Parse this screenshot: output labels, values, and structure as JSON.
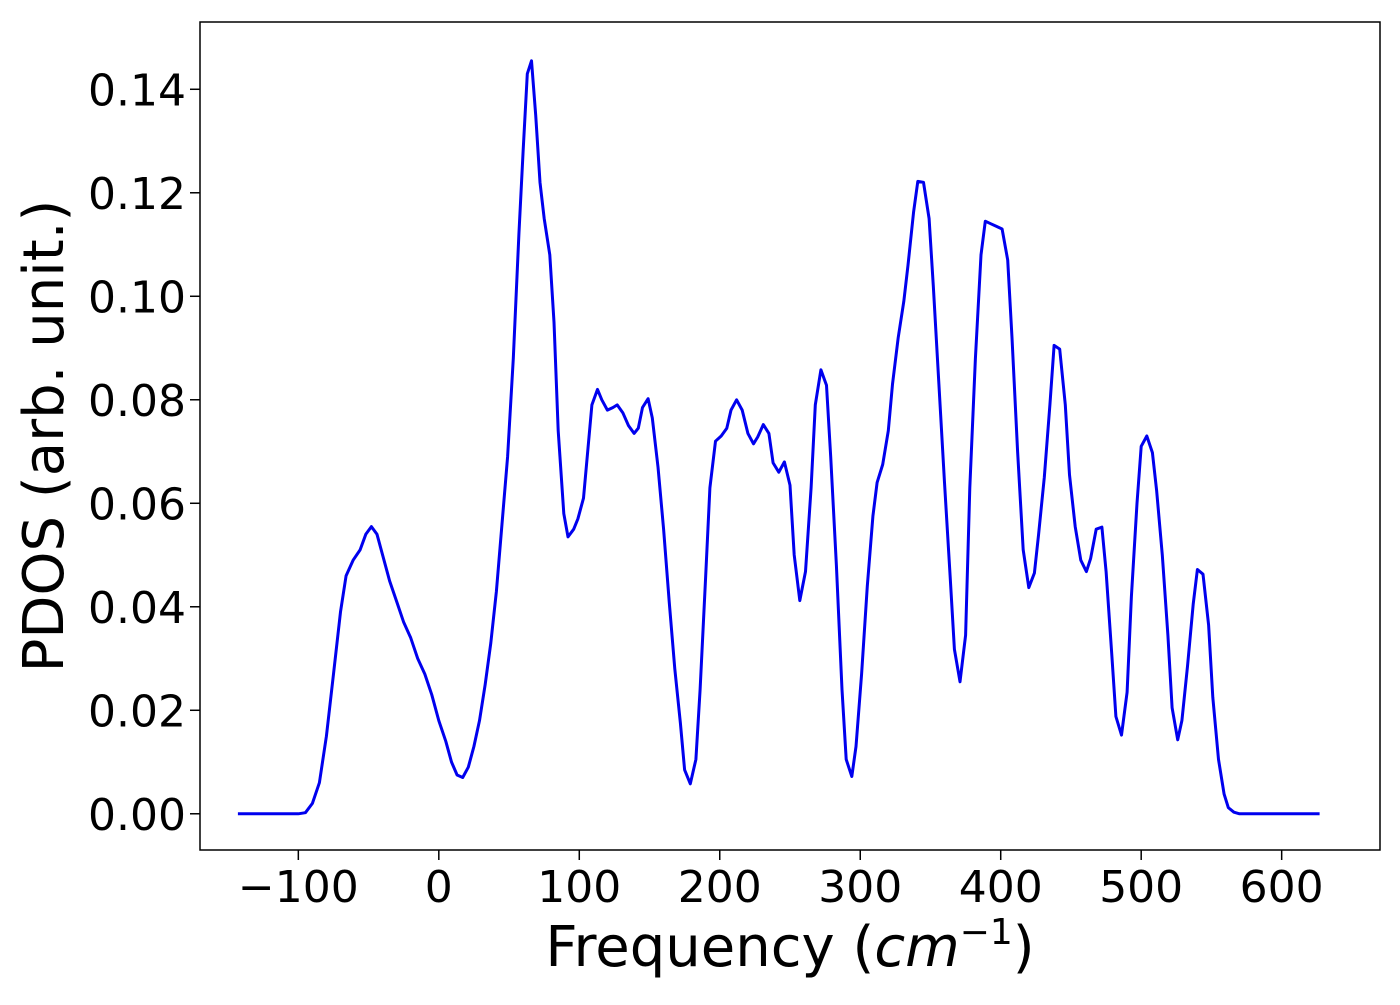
{
  "chart_data": {
    "type": "line",
    "title": "",
    "xlabel": {
      "prefix": "Frequency (",
      "italic": "cm",
      "sup": "−1",
      "suffix": ")"
    },
    "ylabel": "PDOS (arb. unit.)",
    "xlim": [
      -170,
      670
    ],
    "ylim": [
      -0.007,
      0.153
    ],
    "xticks": [
      -100,
      0,
      100,
      200,
      300,
      400,
      500,
      600
    ],
    "xtick_labels": [
      "−100",
      "0",
      "100",
      "200",
      "300",
      "400",
      "500",
      "600"
    ],
    "yticks": [
      0.0,
      0.02,
      0.04,
      0.06,
      0.08,
      0.1,
      0.12,
      0.14
    ],
    "ytick_labels": [
      "0.00",
      "0.02",
      "0.04",
      "0.06",
      "0.08",
      "0.10",
      "0.12",
      "0.14"
    ],
    "grid": false,
    "series": [
      {
        "color": "#0000ee",
        "points": [
          [
            -143,
            0.0
          ],
          [
            -100,
            0.0
          ],
          [
            -95,
            0.0002
          ],
          [
            -90,
            0.002
          ],
          [
            -85,
            0.006
          ],
          [
            -80,
            0.015
          ],
          [
            -75,
            0.027
          ],
          [
            -70,
            0.039
          ],
          [
            -66,
            0.046
          ],
          [
            -61,
            0.049
          ],
          [
            -56,
            0.051
          ],
          [
            -52,
            0.054
          ],
          [
            -48,
            0.0555
          ],
          [
            -44,
            0.054
          ],
          [
            -40,
            0.05
          ],
          [
            -35,
            0.045
          ],
          [
            -30,
            0.041
          ],
          [
            -25,
            0.037
          ],
          [
            -20,
            0.034
          ],
          [
            -15,
            0.03
          ],
          [
            -10,
            0.027
          ],
          [
            -5,
            0.023
          ],
          [
            0,
            0.018
          ],
          [
            5,
            0.014
          ],
          [
            9,
            0.01
          ],
          [
            13,
            0.0075
          ],
          [
            17,
            0.007
          ],
          [
            21,
            0.009
          ],
          [
            25,
            0.013
          ],
          [
            29,
            0.018
          ],
          [
            33,
            0.025
          ],
          [
            37,
            0.033
          ],
          [
            41,
            0.043
          ],
          [
            45,
            0.056
          ],
          [
            49,
            0.069
          ],
          [
            53,
            0.088
          ],
          [
            57,
            0.112
          ],
          [
            60,
            0.128
          ],
          [
            63,
            0.143
          ],
          [
            66,
            0.1455
          ],
          [
            69,
            0.135
          ],
          [
            72,
            0.122
          ],
          [
            75,
            0.115
          ],
          [
            79,
            0.108
          ],
          [
            82,
            0.095
          ],
          [
            85,
            0.074
          ],
          [
            89,
            0.058
          ],
          [
            92,
            0.0535
          ],
          [
            96,
            0.055
          ],
          [
            99,
            0.057
          ],
          [
            103,
            0.061
          ],
          [
            106,
            0.07
          ],
          [
            109,
            0.079
          ],
          [
            113,
            0.082
          ],
          [
            116,
            0.08
          ],
          [
            120,
            0.078
          ],
          [
            124,
            0.0785
          ],
          [
            127,
            0.079
          ],
          [
            131,
            0.0775
          ],
          [
            135,
            0.075
          ],
          [
            139,
            0.0735
          ],
          [
            142,
            0.0745
          ],
          [
            145,
            0.0785
          ],
          [
            149,
            0.0802
          ],
          [
            152,
            0.0765
          ],
          [
            156,
            0.067
          ],
          [
            160,
            0.055
          ],
          [
            164,
            0.041
          ],
          [
            168,
            0.028
          ],
          [
            172,
            0.0175
          ],
          [
            175,
            0.0085
          ],
          [
            179,
            0.0058
          ],
          [
            183,
            0.0105
          ],
          [
            186,
            0.024
          ],
          [
            190,
            0.046
          ],
          [
            193,
            0.063
          ],
          [
            197,
            0.072
          ],
          [
            201,
            0.073
          ],
          [
            205,
            0.0745
          ],
          [
            208,
            0.078
          ],
          [
            212,
            0.08
          ],
          [
            216,
            0.078
          ],
          [
            220,
            0.0735
          ],
          [
            224,
            0.0715
          ],
          [
            227,
            0.0728
          ],
          [
            231,
            0.0752
          ],
          [
            235,
            0.0735
          ],
          [
            238,
            0.0678
          ],
          [
            242,
            0.066
          ],
          [
            246,
            0.068
          ],
          [
            250,
            0.0635
          ],
          [
            253,
            0.05
          ],
          [
            257,
            0.0412
          ],
          [
            261,
            0.0468
          ],
          [
            265,
            0.063
          ],
          [
            268,
            0.079
          ],
          [
            272,
            0.0858
          ],
          [
            276,
            0.0828
          ],
          [
            279,
            0.069
          ],
          [
            283,
            0.048
          ],
          [
            287,
            0.024
          ],
          [
            290,
            0.0105
          ],
          [
            294,
            0.0072
          ],
          [
            297,
            0.013
          ],
          [
            301,
            0.027
          ],
          [
            305,
            0.044
          ],
          [
            309,
            0.0575
          ],
          [
            312,
            0.064
          ],
          [
            316,
            0.0675
          ],
          [
            320,
            0.074
          ],
          [
            323,
            0.083
          ],
          [
            327,
            0.092
          ],
          [
            331,
            0.099
          ],
          [
            334,
            0.106
          ],
          [
            338,
            0.1163
          ],
          [
            341,
            0.1222
          ],
          [
            345,
            0.122
          ],
          [
            349,
            0.115
          ],
          [
            352,
            0.102
          ],
          [
            356,
            0.083
          ],
          [
            360,
            0.064
          ],
          [
            364,
            0.046
          ],
          [
            367,
            0.0318
          ],
          [
            371,
            0.0255
          ],
          [
            375,
            0.0345
          ],
          [
            378,
            0.063
          ],
          [
            382,
            0.088
          ],
          [
            386,
            0.108
          ],
          [
            389,
            0.1145
          ],
          [
            393,
            0.114
          ],
          [
            397,
            0.1135
          ],
          [
            401,
            0.113
          ],
          [
            405,
            0.107
          ],
          [
            408,
            0.092
          ],
          [
            412,
            0.07
          ],
          [
            416,
            0.051
          ],
          [
            420,
            0.0437
          ],
          [
            424,
            0.0465
          ],
          [
            427,
            0.054
          ],
          [
            431,
            0.065
          ],
          [
            435,
            0.079
          ],
          [
            438,
            0.0905
          ],
          [
            442,
            0.0898
          ],
          [
            446,
            0.079
          ],
          [
            449,
            0.0655
          ],
          [
            453,
            0.0555
          ],
          [
            457,
            0.049
          ],
          [
            461,
            0.0468
          ],
          [
            464,
            0.0493
          ],
          [
            468,
            0.055
          ],
          [
            472,
            0.0554
          ],
          [
            475,
            0.0468
          ],
          [
            479,
            0.031
          ],
          [
            482,
            0.0188
          ],
          [
            486,
            0.0152
          ],
          [
            490,
            0.0235
          ],
          [
            493,
            0.042
          ],
          [
            497,
            0.06
          ],
          [
            500,
            0.071
          ],
          [
            504,
            0.073
          ],
          [
            508,
            0.0698
          ],
          [
            511,
            0.0625
          ],
          [
            515,
            0.05
          ],
          [
            519,
            0.0345
          ],
          [
            522,
            0.0205
          ],
          [
            526,
            0.0143
          ],
          [
            529,
            0.018
          ],
          [
            533,
            0.0285
          ],
          [
            537,
            0.0405
          ],
          [
            540,
            0.0472
          ],
          [
            544,
            0.0463
          ],
          [
            548,
            0.0365
          ],
          [
            551,
            0.0225
          ],
          [
            555,
            0.0105
          ],
          [
            559,
            0.0038
          ],
          [
            562,
            0.0012
          ],
          [
            566,
            0.0003
          ],
          [
            570,
            0.0
          ],
          [
            627,
            0.0
          ]
        ]
      }
    ]
  }
}
